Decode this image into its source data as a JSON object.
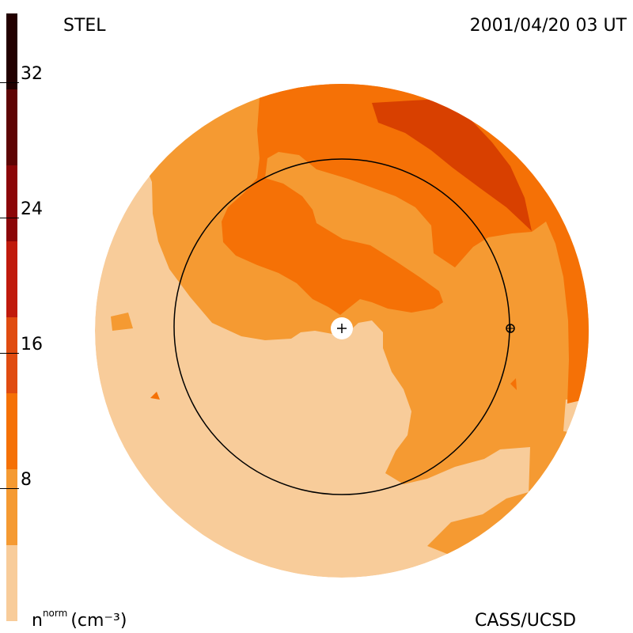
{
  "header": {
    "observatory": "STEL",
    "timestamp": "2001/04/20 03 UT"
  },
  "footer": {
    "units_base": "n",
    "units_super": "norm",
    "units_rest": "(cm⁻³)",
    "credit": "CASS/UCSD"
  },
  "colorbar": {
    "ticks": [
      "32",
      "24",
      "16",
      "8"
    ],
    "colors_bottom_to_top": [
      "#f8cc9a",
      "#f59a32",
      "#f57106",
      "#e04c10",
      "#c01a0c",
      "#8c0608",
      "#5e0404",
      "#220000"
    ]
  },
  "map": {
    "colors": {
      "light": "#f8cc9a",
      "mid": "#f59a32",
      "dark": "#f57106",
      "darker": "#d84000",
      "line": "#000000",
      "sun": "#ffffff"
    }
  }
}
